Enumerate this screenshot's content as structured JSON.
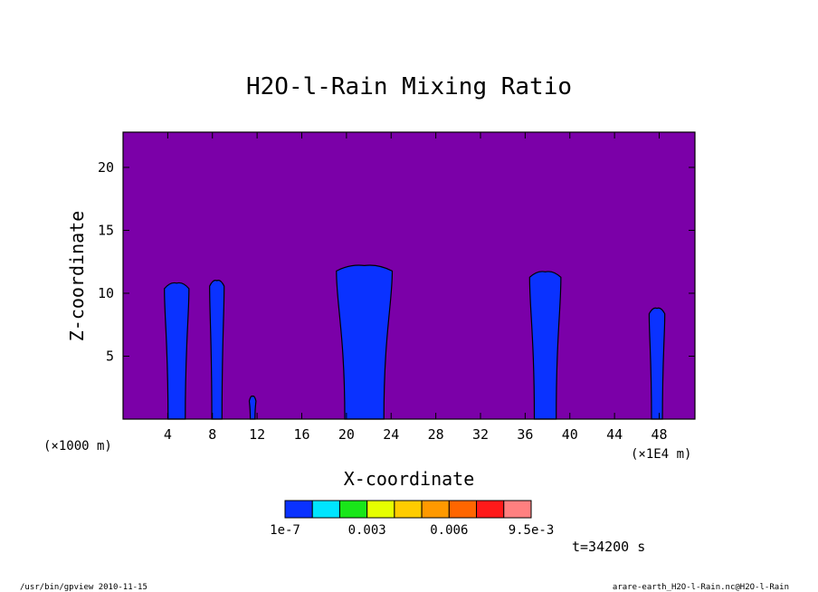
{
  "chart_data": {
    "type": "heatmap",
    "title": "H2O-l-Rain Mixing Ratio",
    "xlabel": "X-coordinate",
    "ylabel": "Z-coordinate",
    "x_unit": "(×1E4 m)",
    "y_unit": "(×1000 m)",
    "x_ticks": [
      "4",
      "8",
      "12",
      "16",
      "20",
      "24",
      "28",
      "32",
      "36",
      "40",
      "44",
      "48"
    ],
    "y_ticks": [
      "5",
      "10",
      "15",
      "20"
    ],
    "xlim": [
      0,
      51.2
    ],
    "ylim": [
      0,
      22.8
    ],
    "grid": false,
    "background_color": "#7b00a8",
    "colorbar": {
      "colors": [
        "#0a32ff",
        "#00e5ff",
        "#19e619",
        "#e6ff00",
        "#ffcc00",
        "#ff9900",
        "#ff6600",
        "#ff1a1a",
        "#ff8080"
      ],
      "labels": [
        "1e-7",
        "0.003",
        "0.006",
        "9.5e-3"
      ]
    },
    "time_label": "t=34200 s",
    "rain_regions": [
      {
        "x_center": 4.8,
        "width": 2.2,
        "top": 10.8
      },
      {
        "x_center": 8.4,
        "width": 1.3,
        "top": 11.0
      },
      {
        "x_center": 11.6,
        "width": 0.6,
        "top": 1.8
      },
      {
        "x_center": 21.6,
        "width": 5.0,
        "top": 12.2
      },
      {
        "x_center": 37.8,
        "width": 2.8,
        "top": 11.7
      },
      {
        "x_center": 47.8,
        "width": 1.4,
        "top": 8.8
      }
    ]
  },
  "footer": {
    "left": "/usr/bin/gpview  2010-11-15",
    "right": "arare-earth_H2O-l-Rain.nc@H2O-l-Rain"
  }
}
